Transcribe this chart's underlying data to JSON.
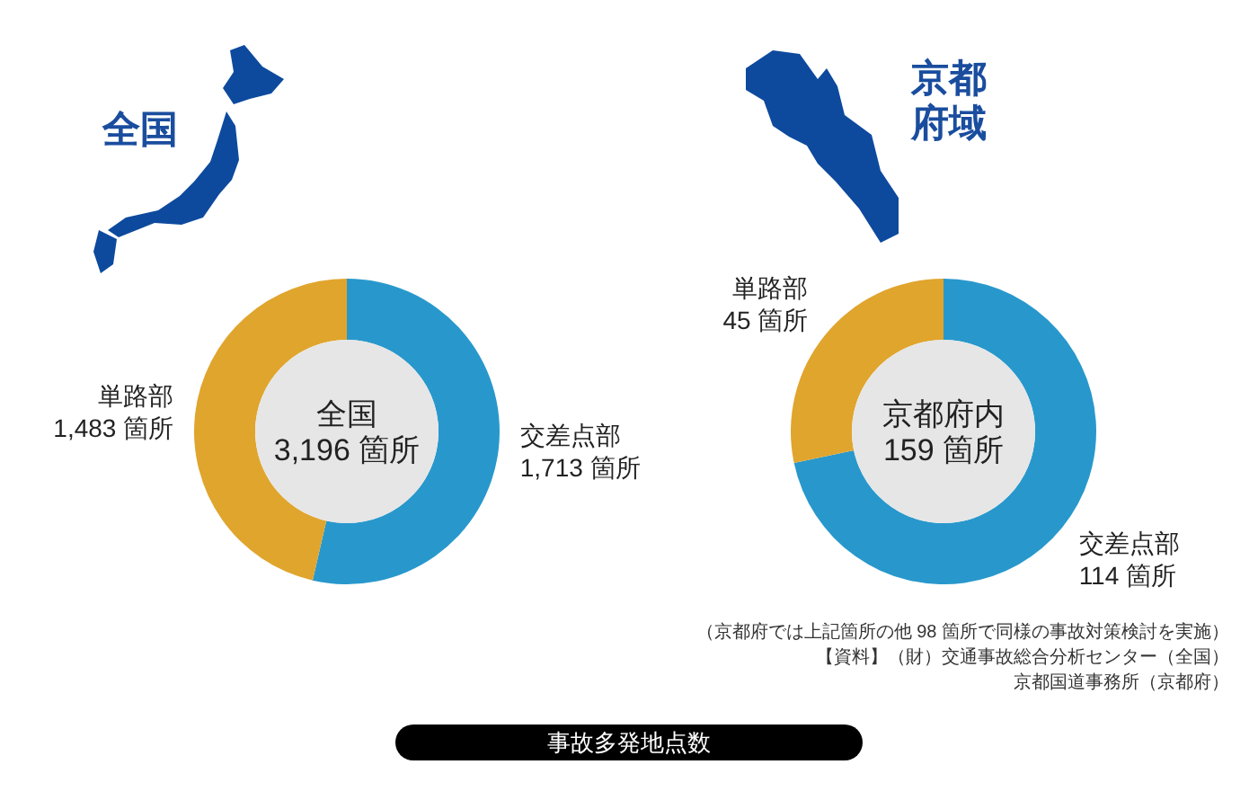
{
  "chart_data": [
    {
      "type": "donut",
      "title": "全国",
      "annotations": [
        "全国\n3,196 箇所"
      ],
      "categories": [
        "交差点部",
        "単路部"
      ],
      "values": [
        1713,
        1483
      ],
      "colors": [
        "#2898cc",
        "#e0a52d"
      ],
      "value_labels": [
        "1,713 箇所",
        "1,483 箇所"
      ]
    },
    {
      "type": "donut",
      "title": "京都府域",
      "annotations": [
        "京都府内\n159 箇所"
      ],
      "categories": [
        "交差点部",
        "単路部"
      ],
      "values": [
        114,
        45
      ],
      "colors": [
        "#2898cc",
        "#e0a52d"
      ],
      "value_labels": [
        "114 箇所",
        "45 箇所"
      ]
    },
    {
      "type": "other",
      "title": "事故多発地点数",
      "annotations": [
        "（京都府では上記箇所の他 98 箇所で同様の事故対策検討を実施）",
        "【資料】（財）交通事故総合分析センター（全国）",
        "京都国道事務所（京都府）"
      ]
    }
  ]
}
